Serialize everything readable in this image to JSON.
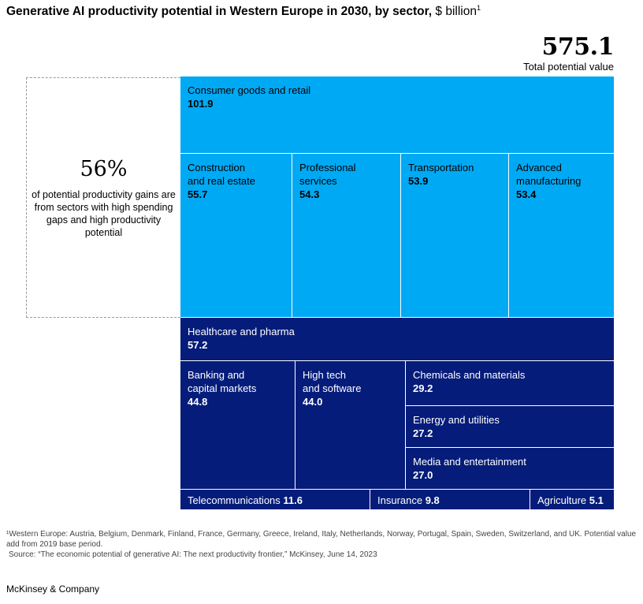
{
  "header": {
    "title_bold": "Generative AI productivity potential in Western Europe in 2030, by sector,",
    "title_unit": "$ billion",
    "title_footnote_mark": "1"
  },
  "total": {
    "value": "575.1",
    "label": "Total potential value"
  },
  "callout": {
    "percent": "56%",
    "text": "of potential productivity gains are from sectors with high spending gaps and high productivity potential"
  },
  "colors": {
    "light": "#00a9f4",
    "dark": "#051c7a",
    "divider": "#ffffff"
  },
  "chart_data": {
    "type": "treemap",
    "unit": "$ billion",
    "total": 575.1,
    "groups": [
      {
        "color": "#00a9f4",
        "sectors": [
          {
            "name": "Consumer goods and retail",
            "label": "Consumer goods and retail",
            "value": 101.9
          },
          {
            "name": "Construction and real estate",
            "label": "Construction\nand real estate",
            "value": 55.7
          },
          {
            "name": "Professional services",
            "label": "Professional\nservices",
            "value": 54.3
          },
          {
            "name": "Transportation",
            "label": "Transportation",
            "value": 53.9
          },
          {
            "name": "Advanced manufacturing",
            "label": "Advanced\nmanufacturing",
            "value": 53.4
          }
        ]
      },
      {
        "color": "#051c7a",
        "sectors": [
          {
            "name": "Healthcare and pharma",
            "label": "Healthcare and pharma",
            "value": 57.2
          },
          {
            "name": "Banking and capital markets",
            "label": "Banking and\ncapital markets",
            "value": 44.8
          },
          {
            "name": "High tech and software",
            "label": "High tech\nand software",
            "value": 44.0
          },
          {
            "name": "Chemicals and materials",
            "label": "Chemicals and materials",
            "value": 29.2
          },
          {
            "name": "Energy and utilities",
            "label": "Energy and utilities",
            "value": 27.2
          },
          {
            "name": "Media and entertainment",
            "label": "Media and entertainment",
            "value": 27.0
          },
          {
            "name": "Telecommunications",
            "label": "Telecommunications",
            "value": 11.6
          },
          {
            "name": "Insurance",
            "label": "Insurance",
            "value": 9.8
          },
          {
            "name": "Agriculture",
            "label": "Agriculture",
            "value": 5.1
          }
        ]
      }
    ]
  },
  "footnotes": {
    "note": "¹Western Europe: Austria, Belgium, Denmark, Finland, France, Germany, Greece, Ireland, Italy, Netherlands, Norway, Portugal, Spain, Sweden, Switzerland, and UK. Potential value add from 2019 base period.",
    "source": "Source: “The economic potential of generative AI: The next productivity frontier,” McKinsey, June 14, 2023"
  },
  "brand": "McKinsey & Company"
}
